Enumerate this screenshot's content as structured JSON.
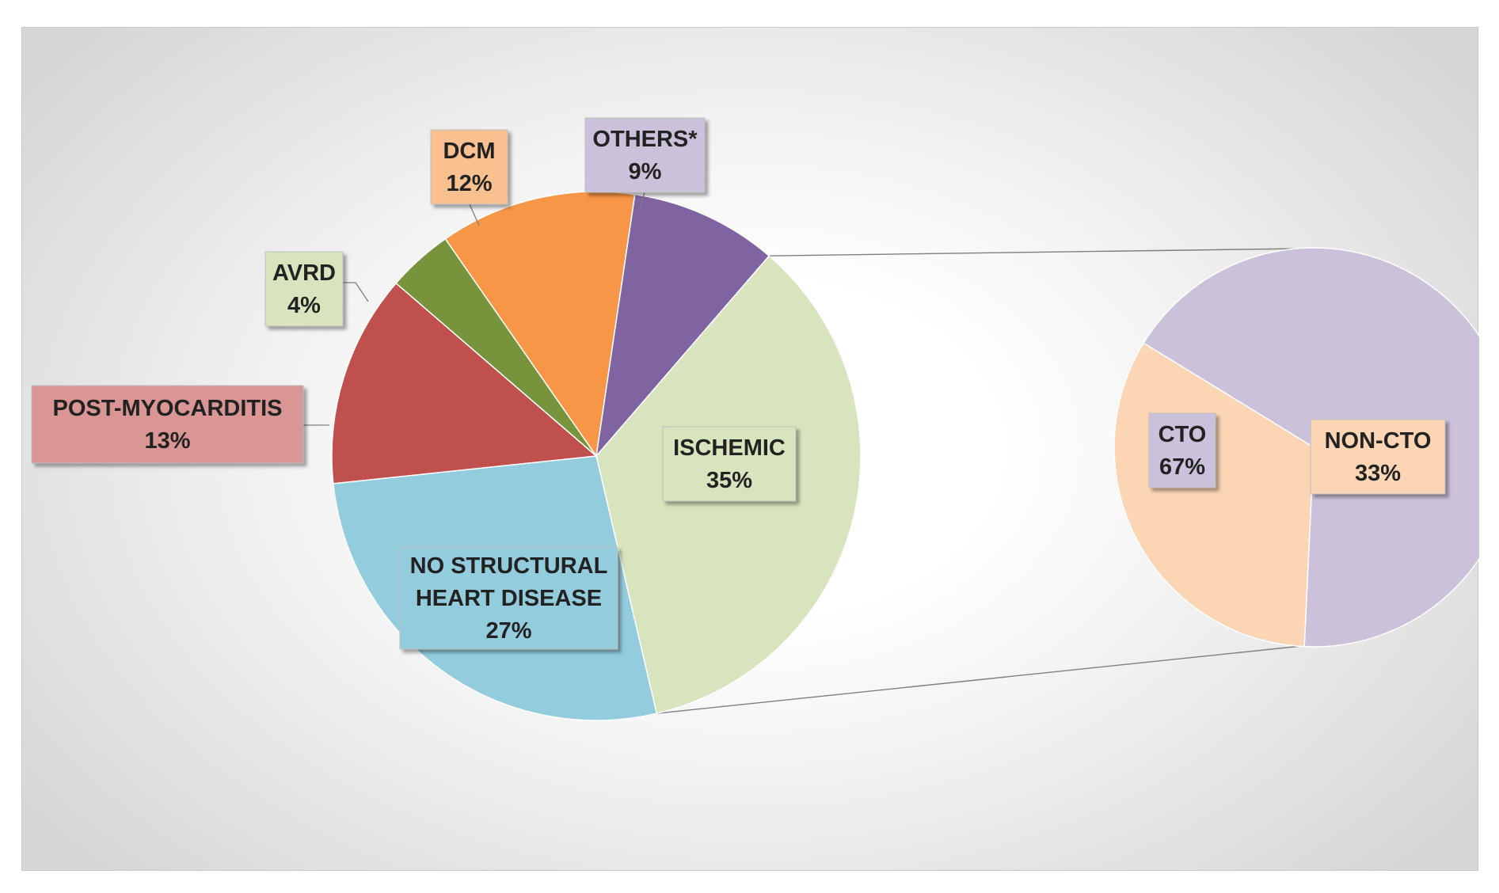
{
  "chart_data": [
    {
      "type": "pie",
      "title": "",
      "slices": [
        {
          "label": "ISCHEMIC",
          "value": 35,
          "value_label": "35%",
          "color": "#D7E4BD",
          "label_box": "#D7E4BD"
        },
        {
          "label": "NO STRUCTURAL HEART DISEASE",
          "label_lines": [
            "NO STRUCTURAL",
            "HEART DISEASE"
          ],
          "value": 27,
          "value_label": "27%",
          "color": "#93CDDD",
          "label_box": "#93CDDD"
        },
        {
          "label": "POST-MYOCARDITIS",
          "value": 13,
          "value_label": "13%",
          "color": "#C0504D",
          "label_box": "#D99694"
        },
        {
          "label": "AVRD",
          "value": 4,
          "value_label": "4%",
          "color": "#77933C",
          "label_box": "#D7E4BD"
        },
        {
          "label": "DCM",
          "value": 12,
          "value_label": "12%",
          "color": "#F79646",
          "label_box": "#FAC090"
        },
        {
          "label": "OTHERS*",
          "value": 9,
          "value_label": "9%",
          "color": "#8064A2",
          "label_box": "#CCC1DA"
        }
      ],
      "exploded_from": "ISCHEMIC"
    },
    {
      "type": "pie",
      "title": "",
      "slices": [
        {
          "label": "CTO",
          "value": 67,
          "value_label": "67%",
          "color": "#CCC1DA",
          "label_box": "#CCC1DA"
        },
        {
          "label": "NON-CTO",
          "value": 33,
          "value_label": "33%",
          "color": "#FCD5B5",
          "label_box": "#FCD5B5"
        }
      ]
    }
  ]
}
